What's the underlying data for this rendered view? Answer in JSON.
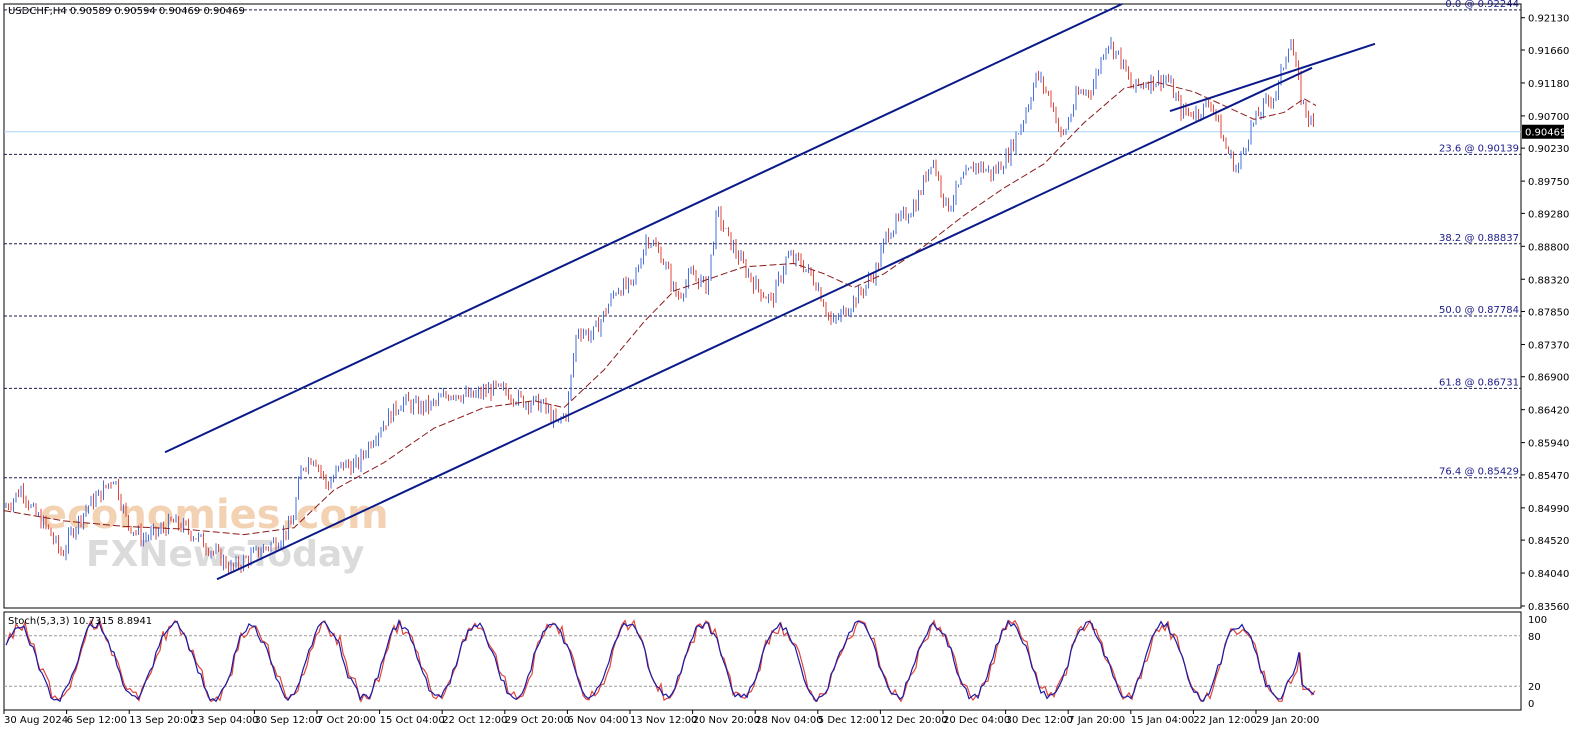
{
  "header": {
    "symbol_line": "USDCHF,H4  0.90589 0.90594 0.90469 0.90469"
  },
  "stoch": {
    "header": "Stoch(5,3,3) 10.7315 8.8941",
    "levels": [
      "100",
      "80",
      "20",
      "0"
    ]
  },
  "watermark": {
    "line1": "economies.com",
    "line2": "FXNewsToday"
  },
  "colors": {
    "bull": "#4a6fd8",
    "bear": "#e0463c",
    "channel": "#0a1a8a",
    "fib": "#1b1b4f",
    "ma": "#8b1a1a",
    "stoch_main": "#1a1aa8",
    "stoch_signal": "#e0463c",
    "current_price_line": "#a8d4ff"
  },
  "chart_data": {
    "type": "candlestick",
    "title": "USDCHF,H4",
    "ylim": [
      0.8356,
      0.9233
    ],
    "price_ticks": [
      "0.92130",
      "0.91660",
      "0.91180",
      "0.90700",
      "0.90230",
      "0.89750",
      "0.89280",
      "0.88800",
      "0.88320",
      "0.87850",
      "0.87370",
      "0.86900",
      "0.86420",
      "0.85940",
      "0.85470",
      "0.84990",
      "0.84520",
      "0.84040",
      "0.83560"
    ],
    "current_price": "0.90469",
    "x_labels": [
      "30 Aug 2024",
      "6 Sep 12:00",
      "13 Sep 20:00",
      "23 Sep 04:00",
      "30 Sep 12:00",
      "7 Oct 20:00",
      "15 Oct 04:00",
      "22 Oct 12:00",
      "29 Oct 20:00",
      "6 Nov 04:00",
      "13 Nov 12:00",
      "20 Nov 20:00",
      "28 Nov 04:00",
      "5 Dec 12:00",
      "12 Dec 20:00",
      "20 Dec 04:00",
      "30 Dec 12:00",
      "7 Jan 20:00",
      "15 Jan 04:00",
      "22 Jan 12:00",
      "29 Jan 20:00"
    ],
    "fib_levels": [
      {
        "label": "0.0 @ 0.92244",
        "value": 0.92244
      },
      {
        "label": "23.6 @ 0.90139",
        "value": 0.90139
      },
      {
        "label": "38.2 @ 0.88837",
        "value": 0.88837
      },
      {
        "label": "50.0 @ 0.87784",
        "value": 0.87784
      },
      {
        "label": "61.8 @ 0.86731",
        "value": 0.86731
      },
      {
        "label": "76.4 @ 0.85429",
        "value": 0.85429
      }
    ],
    "close_path": [
      [
        0,
        0.8497
      ],
      [
        10,
        0.851
      ],
      [
        20,
        0.8528
      ],
      [
        30,
        0.8495
      ],
      [
        45,
        0.847
      ],
      [
        60,
        0.843
      ],
      [
        70,
        0.8465
      ],
      [
        85,
        0.85
      ],
      [
        100,
        0.8522
      ],
      [
        112,
        0.8545
      ],
      [
        125,
        0.8478
      ],
      [
        140,
        0.8455
      ],
      [
        155,
        0.8462
      ],
      [
        170,
        0.8478
      ],
      [
        185,
        0.8468
      ],
      [
        200,
        0.845
      ],
      [
        215,
        0.843
      ],
      [
        230,
        0.841
      ],
      [
        245,
        0.8425
      ],
      [
        260,
        0.8438
      ],
      [
        275,
        0.8452
      ],
      [
        290,
        0.8475
      ],
      [
        300,
        0.856
      ],
      [
        312,
        0.8575
      ],
      [
        325,
        0.853
      ],
      [
        340,
        0.8562
      ],
      [
        355,
        0.856
      ],
      [
        370,
        0.86
      ],
      [
        385,
        0.8628
      ],
      [
        400,
        0.8655
      ],
      [
        415,
        0.8645
      ],
      [
        430,
        0.8648
      ],
      [
        450,
        0.8668
      ],
      [
        470,
        0.866
      ],
      [
        490,
        0.8672
      ],
      [
        505,
        0.8668
      ],
      [
        520,
        0.8655
      ],
      [
        540,
        0.865
      ],
      [
        555,
        0.862
      ],
      [
        565,
        0.864
      ],
      [
        575,
        0.876
      ],
      [
        590,
        0.875
      ],
      [
        600,
        0.8775
      ],
      [
        615,
        0.882
      ],
      [
        630,
        0.882
      ],
      [
        645,
        0.8895
      ],
      [
        660,
        0.8865
      ],
      [
        675,
        0.8805
      ],
      [
        690,
        0.884
      ],
      [
        705,
        0.882
      ],
      [
        715,
        0.893
      ],
      [
        725,
        0.8895
      ],
      [
        740,
        0.8855
      ],
      [
        755,
        0.882
      ],
      [
        770,
        0.88
      ],
      [
        785,
        0.8865
      ],
      [
        800,
        0.8855
      ],
      [
        815,
        0.8825
      ],
      [
        830,
        0.8765
      ],
      [
        845,
        0.879
      ],
      [
        860,
        0.8815
      ],
      [
        875,
        0.8848
      ],
      [
        885,
        0.89
      ],
      [
        900,
        0.892
      ],
      [
        915,
        0.8945
      ],
      [
        930,
        0.901
      ],
      [
        945,
        0.8935
      ],
      [
        960,
        0.8975
      ],
      [
        975,
        0.9
      ],
      [
        990,
        0.8985
      ],
      [
        1005,
        0.901
      ],
      [
        1020,
        0.906
      ],
      [
        1035,
        0.913
      ],
      [
        1050,
        0.909
      ],
      [
        1060,
        0.9035
      ],
      [
        1075,
        0.91
      ],
      [
        1090,
        0.911
      ],
      [
        1105,
        0.918
      ],
      [
        1118,
        0.9155
      ],
      [
        1130,
        0.911
      ],
      [
        1145,
        0.912
      ],
      [
        1165,
        0.9125
      ],
      [
        1180,
        0.9075
      ],
      [
        1195,
        0.9075
      ],
      [
        1210,
        0.909
      ],
      [
        1222,
        0.903
      ],
      [
        1235,
        0.899
      ],
      [
        1248,
        0.905
      ],
      [
        1262,
        0.9085
      ],
      [
        1275,
        0.9105
      ],
      [
        1288,
        0.9185
      ],
      [
        1300,
        0.909
      ],
      [
        1312,
        0.905
      ]
    ],
    "ma_path": [
      [
        0,
        0.8495
      ],
      [
        60,
        0.848
      ],
      [
        120,
        0.8472
      ],
      [
        180,
        0.8468
      ],
      [
        240,
        0.846
      ],
      [
        290,
        0.847
      ],
      [
        330,
        0.8525
      ],
      [
        380,
        0.8565
      ],
      [
        430,
        0.8615
      ],
      [
        480,
        0.8645
      ],
      [
        530,
        0.8655
      ],
      [
        560,
        0.8645
      ],
      [
        600,
        0.87
      ],
      [
        640,
        0.877
      ],
      [
        670,
        0.8815
      ],
      [
        700,
        0.883
      ],
      [
        740,
        0.885
      ],
      [
        790,
        0.8855
      ],
      [
        820,
        0.884
      ],
      [
        850,
        0.882
      ],
      [
        880,
        0.884
      ],
      [
        920,
        0.888
      ],
      [
        960,
        0.8925
      ],
      [
        1000,
        0.8965
      ],
      [
        1040,
        0.9
      ],
      [
        1080,
        0.906
      ],
      [
        1120,
        0.911
      ],
      [
        1150,
        0.912
      ],
      [
        1190,
        0.9105
      ],
      [
        1220,
        0.9085
      ],
      [
        1250,
        0.9065
      ],
      [
        1280,
        0.9075
      ],
      [
        1300,
        0.9095
      ],
      [
        1312,
        0.9085
      ]
    ],
    "channel_upper": [
      [
        165,
        0.858
      ],
      [
        1122,
        0.9233
      ]
    ],
    "channel_lower": [
      [
        217,
        0.8395
      ],
      [
        1312,
        0.914
      ]
    ],
    "channel_mid": [
      [
        1170,
        0.9077
      ],
      [
        1375,
        0.9175
      ]
    ],
    "stochastic": {
      "k_label": "Stoch(5,3,3)",
      "k_value": 10.7315,
      "d_value": 8.8941,
      "ylim": [
        0,
        100
      ],
      "levels": [
        80,
        20
      ]
    }
  }
}
